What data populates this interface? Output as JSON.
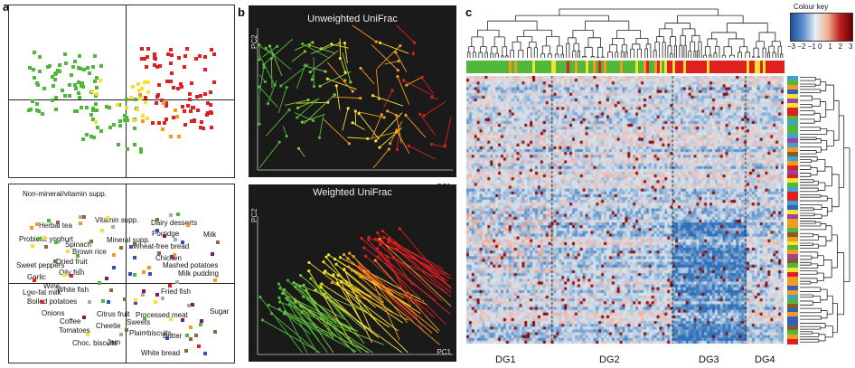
{
  "panels": {
    "a": "a",
    "b": "b",
    "c": "c"
  },
  "panel_b": {
    "top_title": "Unweighted UniFrac",
    "bottom_title": "Weighted UniFrac",
    "x_axis": "PC1",
    "y_axis": "PC2"
  },
  "panel_a_foods": [
    "Non-mineral/vitamin supp.",
    "Vitamin supp.",
    "Herbal tea",
    "Dairy desserts",
    "Porridge",
    "Probiotic yoghurt",
    "Milk",
    "Mineral supp.",
    "Spinach",
    "Wheat-free bread",
    "Brown rice",
    "Chicken",
    "Dried fruit",
    "Mashed potatoes",
    "Sweet peppers",
    "Oily fish",
    "Milk pudding",
    "Garlic",
    "Wine",
    "White fish",
    "Fried fish",
    "Low-fat milk",
    "Boiled potatoes",
    "Citrus fruit",
    "Sugar",
    "Onions",
    "Processed meat",
    "Coffee",
    "Cheese",
    "Sweets",
    "Tomatoes",
    "Butter",
    "Plain biscuits",
    "Jam",
    "Choc. biscuits",
    "White bread"
  ],
  "panel_c": {
    "colour_key_title": "Colour key",
    "colour_key_ticks": [
      "−3",
      "−2",
      "−1",
      "0",
      "1",
      "2",
      "3"
    ],
    "groups": [
      "DG1",
      "DG2",
      "DG3",
      "DG4"
    ]
  },
  "colors": {
    "green": "#4fb83a",
    "yellow": "#f3e32b",
    "orange": "#f39a1f",
    "red": "#e02020",
    "heat_low": "#2f6fb7",
    "heat_mid": "#dfe9f2",
    "heat_high": "#8b0000"
  }
}
